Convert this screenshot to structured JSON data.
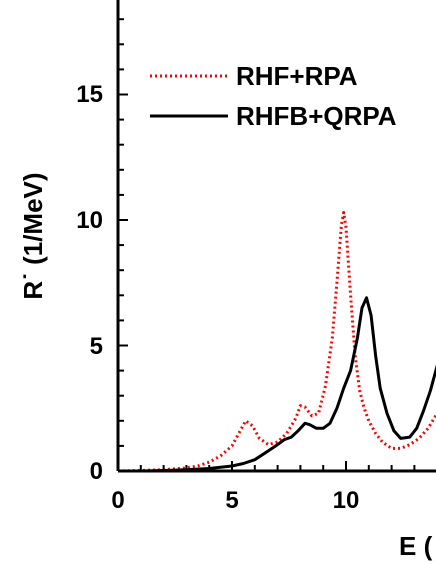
{
  "chart_data": {
    "type": "line",
    "xlabel": "E (",
    "ylabel": "R˙ (1/MeV)",
    "xlim": [
      0,
      14
    ],
    "ylim": [
      0,
      18
    ],
    "x_ticks": [
      0,
      5,
      10
    ],
    "y_ticks": [
      0,
      5,
      10,
      15
    ],
    "grid": false,
    "legend_position": "top-left",
    "series": [
      {
        "name": "RHF+RPA",
        "color": "#ff0000",
        "style": "dotted",
        "x": [
          0,
          1,
          2,
          3,
          3.5,
          4,
          4.5,
          5,
          5.3,
          5.6,
          5.9,
          6.2,
          6.6,
          7,
          7.4,
          7.8,
          8.0,
          8.2,
          8.5,
          8.8,
          9.1,
          9.4,
          9.6,
          9.8,
          9.9,
          10.0,
          10.2,
          10.4,
          10.6,
          10.8,
          11.0,
          11.3,
          11.6,
          12.0,
          12.4,
          12.8,
          13.2,
          13.6,
          14.0
        ],
        "y": [
          0.0,
          0.02,
          0.05,
          0.12,
          0.2,
          0.35,
          0.6,
          1.0,
          1.5,
          2.0,
          1.8,
          1.3,
          1.05,
          1.15,
          1.5,
          2.1,
          2.6,
          2.55,
          2.2,
          2.3,
          3.4,
          5.3,
          7.5,
          9.8,
          10.3,
          9.7,
          7.0,
          4.6,
          3.2,
          2.5,
          2.0,
          1.5,
          1.15,
          0.9,
          0.9,
          1.05,
          1.3,
          1.7,
          2.3
        ]
      },
      {
        "name": "RHFB+QRPA",
        "color": "#000000",
        "style": "solid",
        "x": [
          0,
          1,
          2,
          3,
          4,
          5,
          5.5,
          6,
          6.5,
          7.0,
          7.3,
          7.6,
          7.9,
          8.2,
          8.4,
          8.7,
          9.0,
          9.3,
          9.6,
          9.9,
          10.2,
          10.5,
          10.7,
          10.9,
          11.1,
          11.3,
          11.5,
          11.8,
          12.1,
          12.4,
          12.8,
          13.1,
          13.4,
          13.7,
          14.0
        ],
        "y": [
          0.0,
          0.0,
          0.02,
          0.05,
          0.1,
          0.2,
          0.3,
          0.45,
          0.75,
          1.05,
          1.25,
          1.35,
          1.6,
          1.9,
          1.85,
          1.7,
          1.7,
          1.9,
          2.5,
          3.3,
          4.0,
          5.3,
          6.5,
          6.9,
          6.2,
          4.6,
          3.3,
          2.3,
          1.6,
          1.3,
          1.35,
          1.7,
          2.4,
          3.2,
          4.2
        ]
      }
    ]
  }
}
